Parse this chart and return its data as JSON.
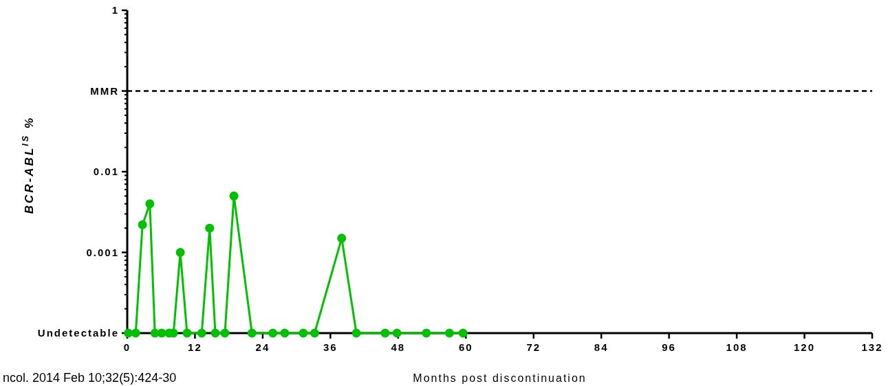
{
  "chart_data": {
    "type": "line",
    "xlabel": "Months post discontinuation",
    "ylabel": "BCR-ABL$^{IS}$ %",
    "log": "y",
    "grid": false,
    "marker": "circle",
    "line_style": "solid",
    "xlim": [
      0,
      132
    ],
    "xticks": [
      0,
      12,
      24,
      36,
      48,
      60,
      72,
      84,
      96,
      108,
      120,
      132
    ],
    "ylim": [
      0.0001,
      1
    ],
    "yticks": [
      {
        "value": 0.0001,
        "label": "Undetectable"
      },
      {
        "value": 0.0002,
        "label": null
      },
      {
        "value": 0.0003,
        "label": null
      },
      {
        "value": 0.0004,
        "label": null
      },
      {
        "value": 0.0005,
        "label": null
      },
      {
        "value": 0.0006,
        "label": null
      },
      {
        "value": 0.0007,
        "label": null
      },
      {
        "value": 0.0008,
        "label": null
      },
      {
        "value": 0.0009,
        "label": null
      },
      {
        "value": 0.001,
        "label": "0.001"
      },
      {
        "value": 0.002,
        "label": null
      },
      {
        "value": 0.003,
        "label": null
      },
      {
        "value": 0.004,
        "label": null
      },
      {
        "value": 0.005,
        "label": null
      },
      {
        "value": 0.006,
        "label": null
      },
      {
        "value": 0.007,
        "label": null
      },
      {
        "value": 0.008,
        "label": null
      },
      {
        "value": 0.009,
        "label": null
      },
      {
        "value": 0.01,
        "label": "0.01"
      },
      {
        "value": 0.02,
        "label": null
      },
      {
        "value": 0.03,
        "label": null
      },
      {
        "value": 0.04,
        "label": null
      },
      {
        "value": 0.05,
        "label": null
      },
      {
        "value": 0.06,
        "label": null
      },
      {
        "value": 0.07,
        "label": null
      },
      {
        "value": 0.08,
        "label": null
      },
      {
        "value": 0.09,
        "label": null
      },
      {
        "value": 0.1,
        "label": "MMR"
      },
      {
        "value": 0.2,
        "label": null
      },
      {
        "value": 0.3,
        "label": null
      },
      {
        "value": 0.4,
        "label": null
      },
      {
        "value": 0.5,
        "label": null
      },
      {
        "value": 0.6,
        "label": null
      },
      {
        "value": 0.7,
        "label": null
      },
      {
        "value": 0.8,
        "label": null
      },
      {
        "value": 0.9,
        "label": null
      },
      {
        "value": 1,
        "label": "1"
      }
    ],
    "ref_lines": [
      {
        "axis": "y",
        "value": 0.1,
        "color": "#000000",
        "line_style": "dashed"
      }
    ],
    "series": [
      {
        "color": "#00c000",
        "x": [
          0.2,
          1.5,
          2.7,
          4.0,
          4.9,
          6.1,
          7.4,
          8.2,
          9.4,
          10.6,
          13.2,
          14.6,
          15.6,
          17.3,
          18.9,
          22.1,
          25.8,
          27.9,
          31.2,
          33.2,
          38.0,
          40.6,
          45.7,
          47.8,
          53.0,
          57.1,
          59.5
        ],
        "values": [
          0.0001,
          0.0001,
          0.0022,
          0.004,
          0.0001,
          0.0001,
          0.0001,
          0.0001,
          0.001,
          0.0001,
          0.0001,
          0.002,
          0.0001,
          0.0001,
          0.005,
          0.0001,
          0.0001,
          0.0001,
          0.0001,
          0.0001,
          0.0015,
          0.0001,
          0.0001,
          0.0001,
          0.0001,
          0.0001,
          0.0001
        ]
      }
    ],
    "annotations": [
      "ncol. 2014 Feb 10;32(5):424-30"
    ]
  }
}
